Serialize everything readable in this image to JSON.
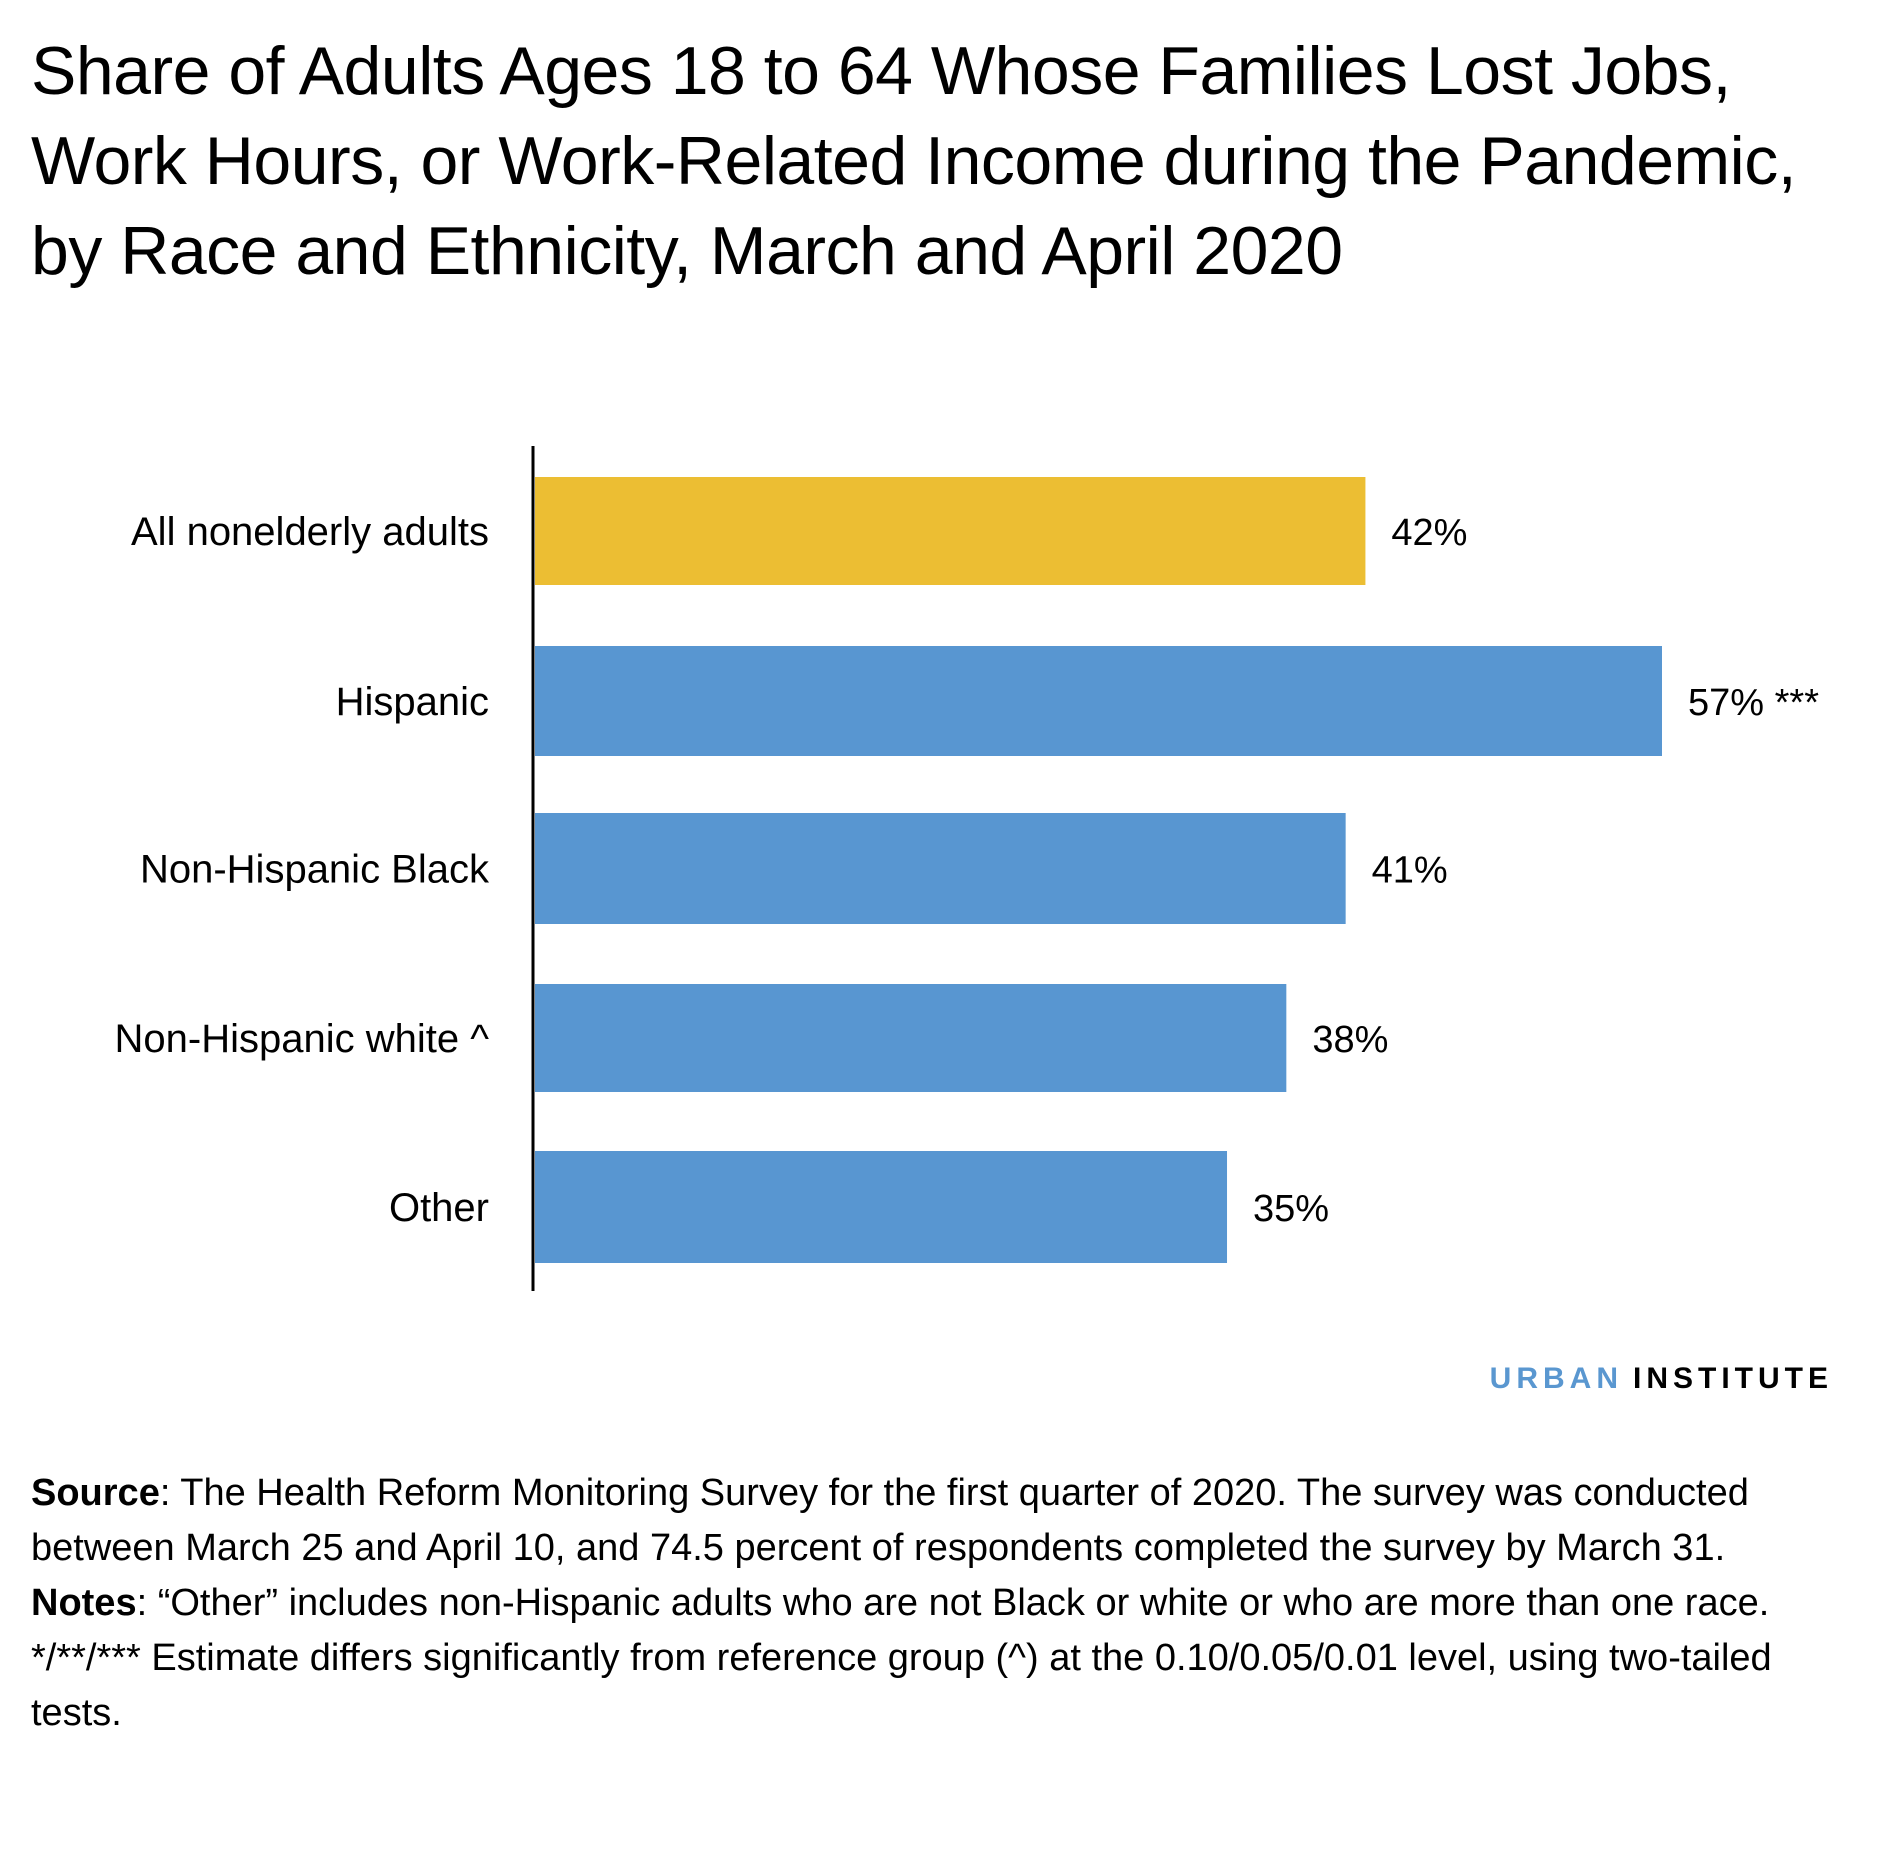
{
  "chart_data": {
    "type": "bar",
    "orientation": "horizontal",
    "title": "Share of Adults Ages 18 to 64 Whose Families Lost Jobs, Work Hours, or Work-Related Income during the Pandemic, by Race and Ethnicity, March and April 2020",
    "categories": [
      "All nonelderly adults",
      "Hispanic",
      "Non-Hispanic Black",
      "Non-Hispanic white ^",
      "Other"
    ],
    "values": [
      42,
      57,
      41,
      38,
      35
    ],
    "data_labels": [
      "42%",
      "57% ***",
      "41%",
      "38%",
      "35%"
    ],
    "colors": [
      "#ecbe33",
      "#5896d1",
      "#5896d1",
      "#5896d1",
      "#5896d1"
    ],
    "xlim": [
      0,
      57
    ],
    "grid": false,
    "value_axis_shown": false
  },
  "logo": {
    "part1": "URBAN",
    "part2": "INSTITUTE",
    "part1_color": "#5a97d0"
  },
  "notes": {
    "source_label": "Source",
    "source_text": ": The Health Reform Monitoring Survey for the first quarter of 2020. The survey was conducted between March 25 and April 10, and 74.5 percent of respondents completed the survey by March 31.",
    "notes_label": "Notes",
    "notes_text": ": “Other” includes non-Hispanic adults who are not Black or white or who are more than one race.",
    "significance": "*/**/*** Estimate differs significantly from reference group (^) at the 0.10/0.05/0.01 level, using two-tailed tests."
  }
}
